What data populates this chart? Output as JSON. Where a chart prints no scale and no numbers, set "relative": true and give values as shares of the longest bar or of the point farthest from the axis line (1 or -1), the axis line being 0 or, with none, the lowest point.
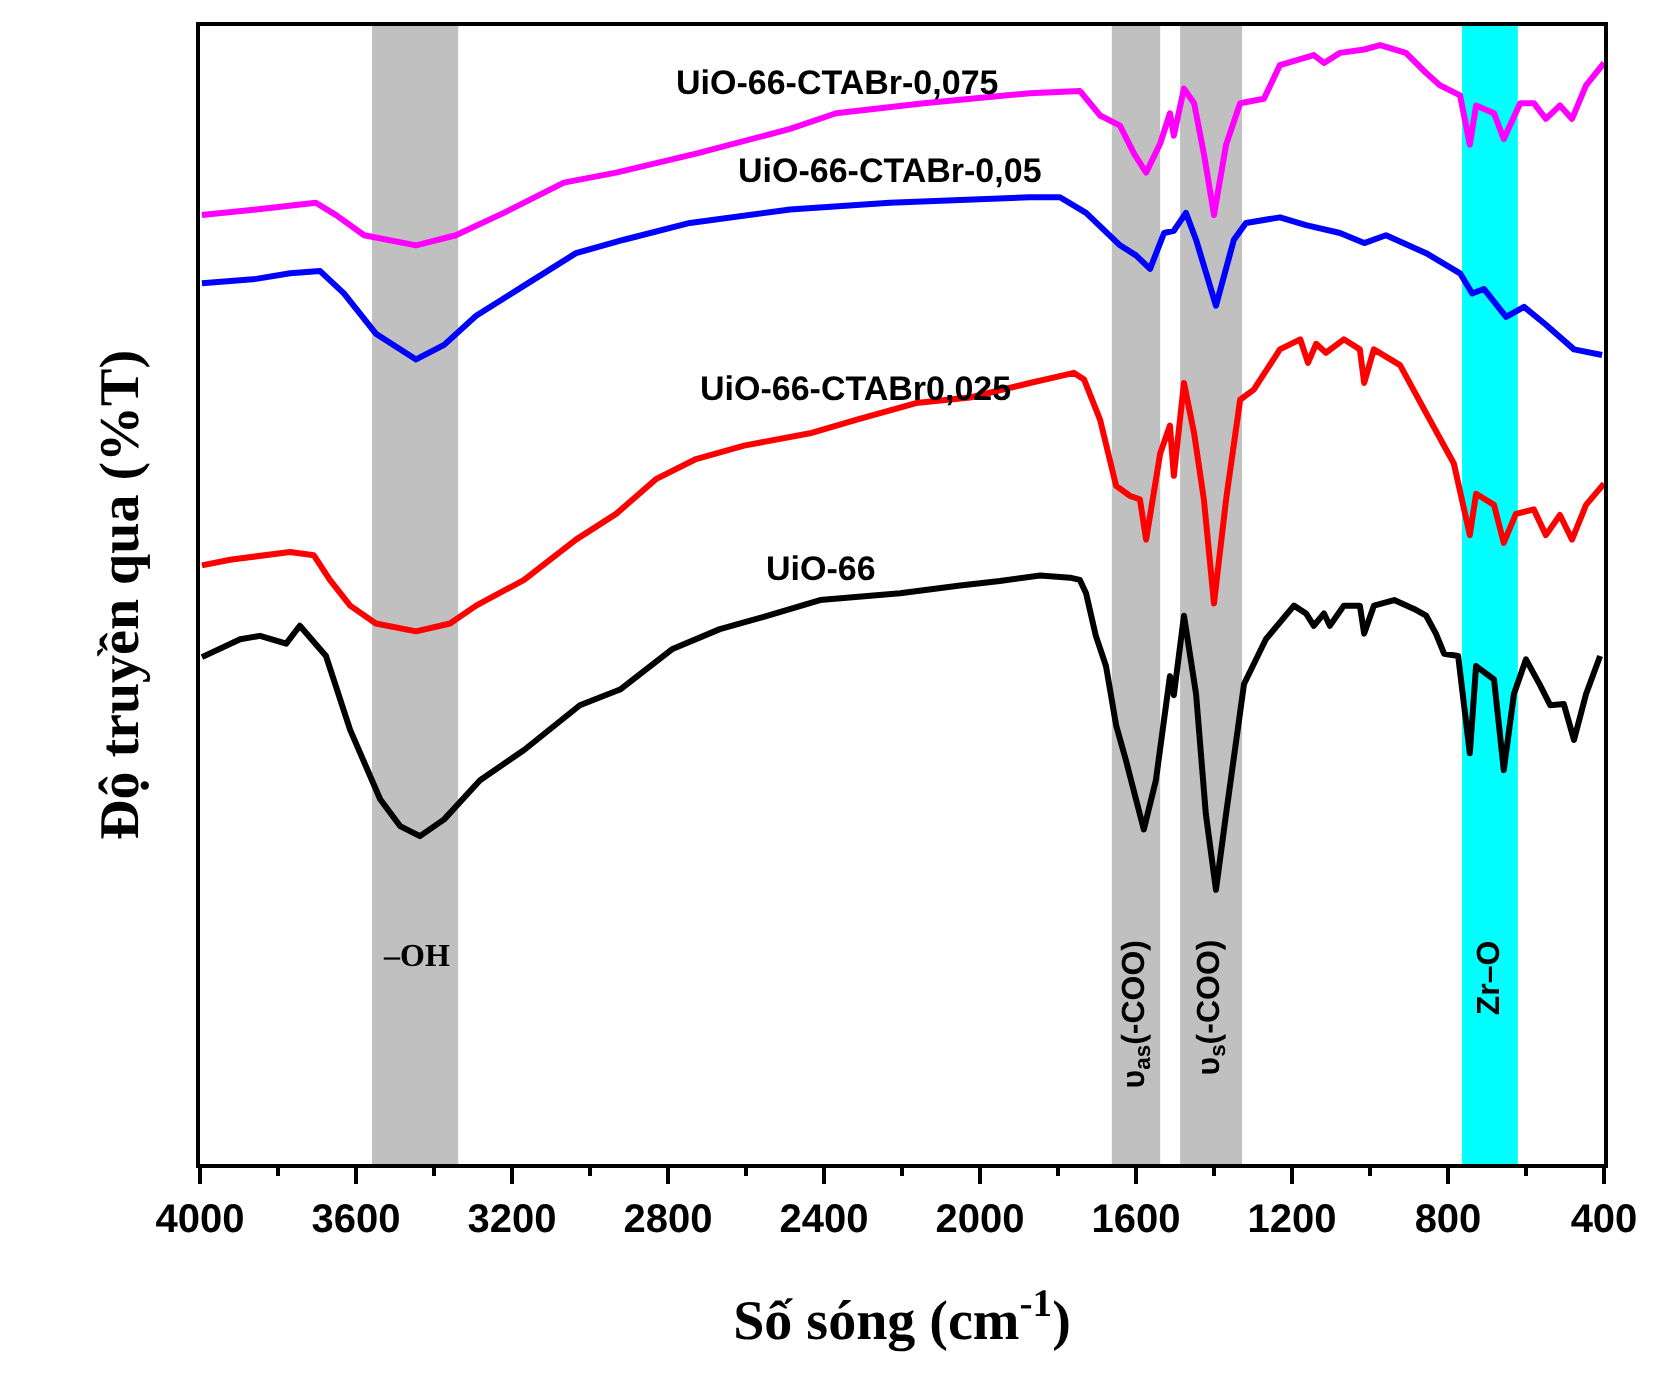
{
  "chart_data": {
    "type": "line",
    "relative": true,
    "xlabel": "Số sóng (cm$^{-1}$)",
    "ylabel": "Độ truyền qua (%T)",
    "xlim": [
      4000,
      400
    ],
    "xticks": [
      4000,
      3600,
      3200,
      2800,
      2400,
      2000,
      1600,
      1200,
      800,
      400
    ],
    "series": [
      {
        "name": "UiO-66-CTABr-0,075",
        "color": "#ff00ff",
        "x": [
          3995,
          3856,
          3703,
          3651,
          3579,
          3446,
          3344,
          3221,
          3067,
          2933,
          2728,
          2487,
          2369,
          2144,
          1872,
          1744,
          1692,
          1641,
          1605,
          1574,
          1538,
          1513,
          1503,
          1477,
          1451,
          1426,
          1400,
          1369,
          1333,
          1272,
          1231,
          1144,
          1118,
          1077,
          1015,
          974,
          908,
          856,
          821,
          769,
          744,
          728,
          682,
          657,
          615,
          580,
          549,
          513,
          482,
          446,
          400
        ],
        "values": [
          0.848,
          0.853,
          0.859,
          0.848,
          0.83,
          0.821,
          0.83,
          0.85,
          0.877,
          0.886,
          0.903,
          0.925,
          0.939,
          0.948,
          0.957,
          0.959,
          0.937,
          0.928,
          0.903,
          0.886,
          0.912,
          0.939,
          0.919,
          0.961,
          0.948,
          0.903,
          0.848,
          0.911,
          0.948,
          0.952,
          0.982,
          0.991,
          0.984,
          0.993,
          0.996,
          1,
          0.993,
          0.975,
          0.964,
          0.955,
          0.911,
          0.946,
          0.939,
          0.916,
          0.948,
          0.948,
          0.934,
          0.946,
          0.934,
          0.964,
          0.984
        ]
      },
      {
        "name": "UiO-66-CTABr-0,05",
        "color": "#0000ff",
        "x": [
          3995,
          3856,
          3769,
          3692,
          3631,
          3549,
          3446,
          3374,
          3292,
          3169,
          3036,
          2913,
          2744,
          2487,
          2231,
          1872,
          1795,
          1728,
          1641,
          1600,
          1564,
          1528,
          1503,
          1472,
          1446,
          1395,
          1349,
          1318,
          1231,
          1164,
          1077,
          1015,
          959,
          856,
          769,
          738,
          708,
          651,
          605,
          549,
          477,
          405
        ],
        "values": [
          0.787,
          0.791,
          0.796,
          0.798,
          0.778,
          0.742,
          0.719,
          0.732,
          0.758,
          0.785,
          0.814,
          0.826,
          0.841,
          0.853,
          0.859,
          0.864,
          0.864,
          0.85,
          0.821,
          0.812,
          0.8,
          0.832,
          0.834,
          0.85,
          0.826,
          0.767,
          0.826,
          0.841,
          0.846,
          0.839,
          0.832,
          0.823,
          0.83,
          0.814,
          0.796,
          0.778,
          0.782,
          0.757,
          0.766,
          0.75,
          0.728,
          0.723
        ]
      },
      {
        "name": "UiO-66-CTABr0,025",
        "color": "#ff0000",
        "x": [
          3995,
          3923,
          3769,
          3708,
          3667,
          3615,
          3549,
          3446,
          3359,
          3292,
          3169,
          3036,
          2933,
          2831,
          2728,
          2605,
          2436,
          2318,
          2164,
          2026,
          1872,
          1759,
          1733,
          1692,
          1651,
          1615,
          1590,
          1574,
          1538,
          1513,
          1503,
          1477,
          1451,
          1426,
          1400,
          1369,
          1333,
          1298,
          1231,
          1179,
          1159,
          1138,
          1113,
          1067,
          1026,
          1015,
          990,
          923,
          856,
          785,
          744,
          728,
          682,
          657,
          626,
          580,
          549,
          513,
          482,
          446,
          400
        ],
        "values": [
          0.535,
          0.54,
          0.547,
          0.544,
          0.522,
          0.499,
          0.483,
          0.476,
          0.483,
          0.499,
          0.522,
          0.558,
          0.581,
          0.612,
          0.63,
          0.642,
          0.653,
          0.665,
          0.68,
          0.685,
          0.698,
          0.707,
          0.701,
          0.665,
          0.606,
          0.597,
          0.594,
          0.558,
          0.635,
          0.66,
          0.615,
          0.698,
          0.653,
          0.594,
          0.501,
          0.594,
          0.683,
          0.692,
          0.728,
          0.737,
          0.716,
          0.733,
          0.725,
          0.737,
          0.728,
          0.698,
          0.728,
          0.714,
          0.671,
          0.626,
          0.562,
          0.599,
          0.589,
          0.555,
          0.581,
          0.585,
          0.562,
          0.58,
          0.558,
          0.589,
          0.608
        ]
      },
      {
        "name": "UiO-66",
        "color": "#000000",
        "x": [
          3995,
          3897,
          3846,
          3779,
          3744,
          3677,
          3615,
          3538,
          3487,
          3436,
          3374,
          3282,
          3169,
          3026,
          2923,
          2790,
          2667,
          2564,
          2410,
          2205,
          2051,
          1949,
          1846,
          1769,
          1744,
          1728,
          1703,
          1677,
          1651,
          1626,
          1580,
          1549,
          1513,
          1503,
          1477,
          1446,
          1421,
          1395,
          1369,
          1323,
          1267,
          1195,
          1164,
          1144,
          1118,
          1103,
          1067,
          1026,
          1015,
          990,
          938,
          887,
          856,
          831,
          810,
          774,
          744,
          728,
          682,
          657,
          631,
          600,
          564,
          538,
          503,
          477,
          446,
          410
        ],
        "values": [
          0.453,
          0.469,
          0.472,
          0.465,
          0.481,
          0.454,
          0.388,
          0.326,
          0.302,
          0.293,
          0.308,
          0.343,
          0.37,
          0.41,
          0.424,
          0.46,
          0.478,
          0.488,
          0.504,
          0.51,
          0.517,
          0.521,
          0.526,
          0.524,
          0.522,
          0.51,
          0.472,
          0.445,
          0.392,
          0.361,
          0.299,
          0.343,
          0.436,
          0.419,
          0.49,
          0.42,
          0.313,
          0.245,
          0.313,
          0.429,
          0.469,
          0.499,
          0.492,
          0.481,
          0.492,
          0.481,
          0.499,
          0.499,
          0.474,
          0.499,
          0.504,
          0.496,
          0.49,
          0.474,
          0.456,
          0.454,
          0.367,
          0.445,
          0.433,
          0.352,
          0.42,
          0.451,
          0.428,
          0.41,
          0.411,
          0.379,
          0.42,
          0.454
        ]
      }
    ],
    "bands": [
      {
        "axis": "x",
        "from": 3559,
        "to": 3338,
        "label": "–OH",
        "color": "#c0c0c0"
      },
      {
        "axis": "x",
        "from": 1662,
        "to": 1538,
        "label": "υ$_{as}$(-COO)",
        "color": "#c0c0c0"
      },
      {
        "axis": "x",
        "from": 1487,
        "to": 1328,
        "label": "υ$_{s}$(-COO)",
        "color": "#c0c0c0"
      },
      {
        "axis": "x",
        "from": 764,
        "to": 621,
        "label": "Zr–O",
        "color": "#00ffff"
      }
    ]
  }
}
